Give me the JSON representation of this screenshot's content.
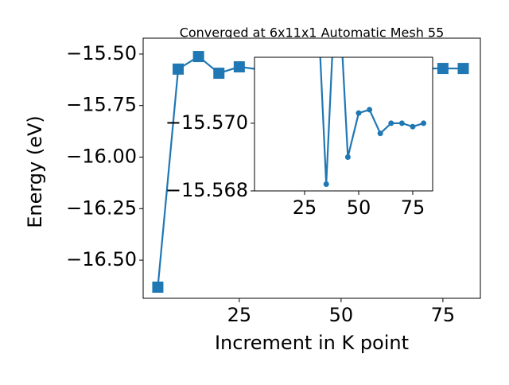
{
  "chart_data": {
    "type": "line",
    "title": "Converged at 6x11x1 Automatic Mesh 55",
    "x_label": "Increment in K point",
    "y_label": "Energy (eV)",
    "x": [
      5,
      10,
      15,
      20,
      25,
      30,
      35,
      40,
      45,
      50,
      55,
      60,
      65,
      70,
      75,
      80
    ],
    "series": [
      {
        "name": "Energy",
        "color": "#1f77b4",
        "values": [
          -16.631,
          -15.573,
          -15.512,
          -15.593,
          -15.562,
          -15.575,
          -15.5682,
          -15.575,
          -15.569,
          -15.5703,
          -15.5704,
          -15.5697,
          -15.57,
          -15.57,
          -15.5699,
          -15.57
        ]
      }
    ],
    "xlim": [
      1.4,
      84.2
    ],
    "ylim": [
      -16.685,
      -15.423
    ],
    "xticks": [
      25,
      50,
      75
    ],
    "yticks": [
      {
        "value": -15.5,
        "label": "−15.50"
      },
      {
        "value": -15.75,
        "label": "−15.75"
      },
      {
        "value": -16.0,
        "label": "−16.00"
      },
      {
        "value": -16.25,
        "label": "−16.25"
      },
      {
        "value": -16.5,
        "label": "−16.50"
      }
    ],
    "inset": {
      "type": "line",
      "x": [
        30,
        35,
        40,
        45,
        50,
        55,
        60,
        65,
        70,
        75,
        80
      ],
      "values": [
        -15.575,
        -15.5682,
        -15.575,
        -15.569,
        -15.5703,
        -15.5704,
        -15.5697,
        -15.57,
        -15.57,
        -15.5699,
        -15.57
      ],
      "color": "#1f77b4",
      "xlim": [
        1.84,
        84.2
      ],
      "ylim": [
        -15.568,
        -15.57195
      ],
      "xticks": [
        25,
        50,
        75
      ],
      "yticks": [
        {
          "value": -15.57,
          "label": "−15.570"
        },
        {
          "value": -15.568,
          "label": "−15.568"
        }
      ]
    }
  }
}
